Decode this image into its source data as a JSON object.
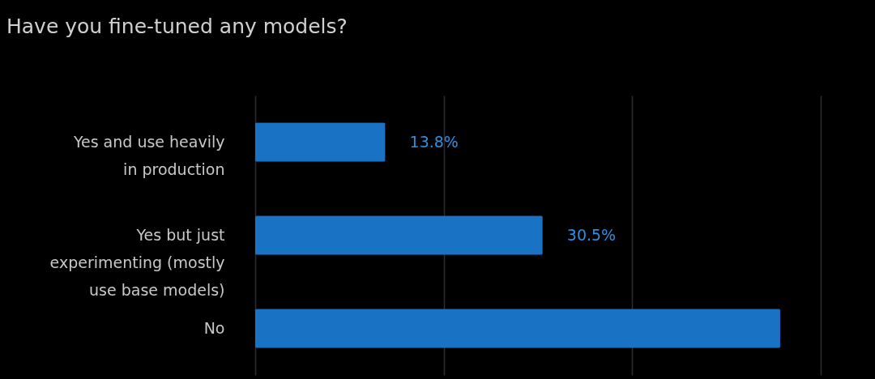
{
  "chart_data": {
    "type": "bar",
    "orientation": "horizontal",
    "title": "Have you fine-tuned any models?",
    "categories": [
      "Yes and use heavily in production",
      "Yes but just experimenting (mostly use base models)",
      "No"
    ],
    "values": [
      13.8,
      30.5,
      55.7
    ],
    "value_labels": [
      "13.8%",
      "30.5%",
      null
    ],
    "color": "#1a72c4",
    "xlim": [
      0,
      60
    ],
    "xticks": [
      {
        "value": 0,
        "label": null
      },
      {
        "value": 20,
        "label": null
      },
      {
        "value": 40,
        "label": null
      },
      {
        "value": 60,
        "label": null
      }
    ],
    "grid": "x"
  }
}
